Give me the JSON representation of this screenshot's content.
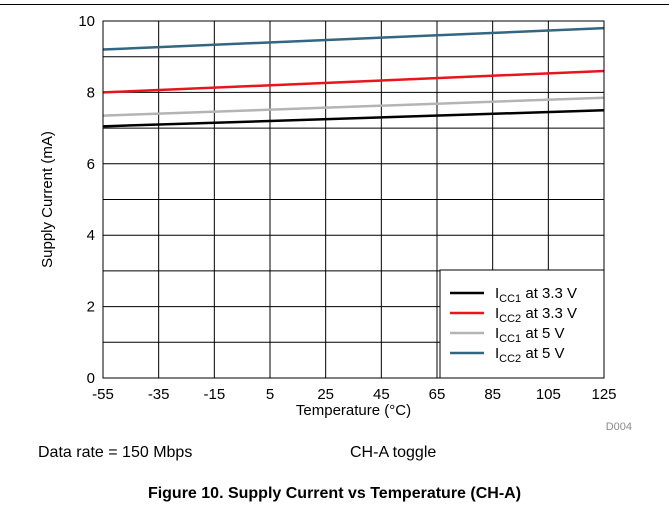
{
  "chart_data": {
    "type": "line",
    "title": "",
    "xlabel": "Temperature (°C)",
    "ylabel": "Supply Current (mA)",
    "xlim": [
      -55,
      125
    ],
    "ylim": [
      0,
      10
    ],
    "x_ticks": [
      "-55",
      "-35",
      "-15",
      "5",
      "25",
      "45",
      "65",
      "85",
      "105",
      "125"
    ],
    "y_ticks": [
      "0",
      "2",
      "4",
      "6",
      "8",
      "10"
    ],
    "grid": true,
    "legend_position": "bottom-right",
    "series": [
      {
        "name": "ICC1 at 3.3 V",
        "name_main": "I",
        "name_sub": "CC1",
        "name_rest": " at 3.3 V",
        "color": "#000000",
        "x": [
          -55,
          125
        ],
        "y": [
          7.05,
          7.5
        ]
      },
      {
        "name": "ICC2 at 3.3 V",
        "name_main": "I",
        "name_sub": "CC2",
        "name_rest": " at 3.3 V",
        "color": "#e8161c",
        "x": [
          -55,
          125
        ],
        "y": [
          8.0,
          8.6
        ]
      },
      {
        "name": "ICC1 at 5 V",
        "name_main": "I",
        "name_sub": "CC1",
        "name_rest": " at 5 V",
        "color": "#b4b4b4",
        "x": [
          -55,
          125
        ],
        "y": [
          7.35,
          7.85
        ]
      },
      {
        "name": "ICC2 at 5 V",
        "name_main": "I",
        "name_sub": "CC2",
        "name_rest": " at 5 V",
        "color": "#336680",
        "x": [
          -55,
          125
        ],
        "y": [
          9.2,
          9.8
        ]
      }
    ],
    "watermark": "D004"
  },
  "notes": {
    "data_rate": "Data rate = 150 Mbps",
    "toggle": "CH-A toggle"
  },
  "caption": "Figure 10. Supply Current vs Temperature (CH-A)"
}
